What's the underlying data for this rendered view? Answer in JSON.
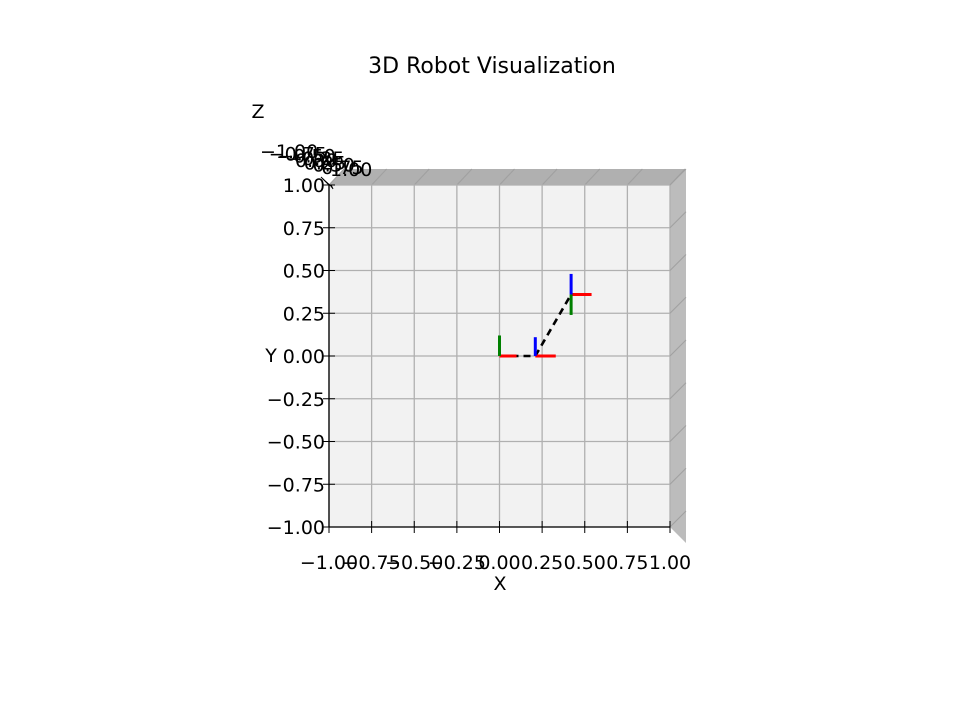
{
  "chart_data": {
    "type": "line",
    "title": "3D Robot Visualization",
    "xlabel": "X",
    "ylabel": "Y",
    "zlabel": "Z",
    "xlim": [
      -1.0,
      1.0
    ],
    "ylim": [
      -1.0,
      1.0
    ],
    "zlim": [
      -1.0,
      1.0
    ],
    "x_ticks": [
      "−1.00",
      "−0.75",
      "−0.50",
      "−0.25",
      "0.00",
      "0.25",
      "0.50",
      "0.75",
      "1.00"
    ],
    "y_ticks": [
      "−1.00",
      "−0.75",
      "−0.50",
      "−0.25",
      "0.00",
      "0.25",
      "0.50",
      "0.75",
      "1.00"
    ],
    "z_ticks": [
      "−1.00",
      "−0.75",
      "−0.50",
      "−0.25",
      "0.00",
      "0.25",
      "0.50",
      "0.75",
      "1.00"
    ],
    "grid": true,
    "view": "top-down",
    "link_style": "dashed",
    "link_color": "#000000",
    "joints": [
      {
        "x": 0.0,
        "y": 0.0,
        "z": 0.0
      },
      {
        "x": 0.21,
        "y": 0.0,
        "z": 0.0
      },
      {
        "x": 0.42,
        "y": 0.36,
        "z": 0.0
      }
    ],
    "frame_axis_length": 0.12,
    "frames": [
      {
        "x": 0.0,
        "y": 0.0,
        "axes": [
          {
            "axis": "x",
            "color": "#ff0000",
            "dx": 0.1,
            "dy": 0.0
          },
          {
            "axis": "y",
            "color": "#008000",
            "dx": 0.0,
            "dy": 0.12
          },
          {
            "axis": "z",
            "color": "#0000ff",
            "dx": 0.0,
            "dy": 0.0
          }
        ]
      },
      {
        "x": 0.21,
        "y": 0.0,
        "axes": [
          {
            "axis": "x",
            "color": "#ff0000",
            "dx": 0.12,
            "dy": 0.0
          },
          {
            "axis": "y",
            "color": "#008000",
            "dx": 0.0,
            "dy": 0.0
          },
          {
            "axis": "z",
            "color": "#0000ff",
            "dx": 0.0,
            "dy": 0.11
          }
        ]
      },
      {
        "x": 0.42,
        "y": 0.36,
        "axes": [
          {
            "axis": "x",
            "color": "#ff0000",
            "dx": 0.12,
            "dy": 0.0
          },
          {
            "axis": "y",
            "color": "#008000",
            "dx": 0.0,
            "dy": -0.12
          },
          {
            "axis": "z",
            "color": "#0000ff",
            "dx": 0.0,
            "dy": 0.12
          }
        ]
      }
    ]
  }
}
